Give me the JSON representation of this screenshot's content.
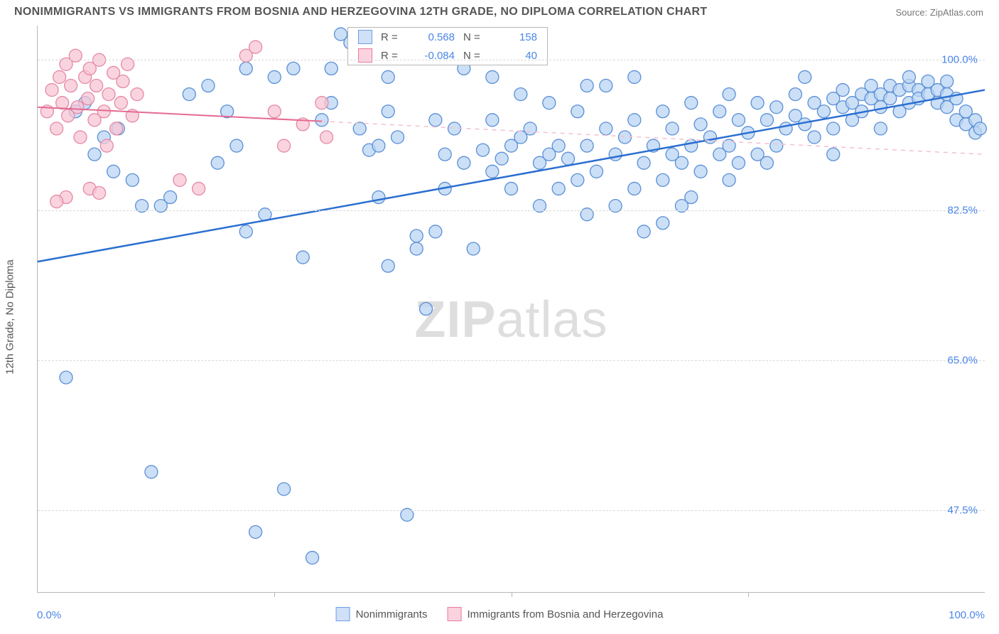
{
  "title": "NONIMMIGRANTS VS IMMIGRANTS FROM BOSNIA AND HERZEGOVINA 12TH GRADE, NO DIPLOMA CORRELATION CHART",
  "source": "Source: ZipAtlas.com",
  "y_axis_title": "12th Grade, No Diploma",
  "watermark_bold": "ZIP",
  "watermark_light": "atlas",
  "axes": {
    "xlim": [
      0,
      100
    ],
    "ylim": [
      38,
      104
    ],
    "x_label_min": "0.0%",
    "x_label_max": "100.0%",
    "x_ticks": [
      0,
      25,
      50,
      75,
      100
    ],
    "y_ticks": [
      {
        "v": 47.5,
        "label": "47.5%"
      },
      {
        "v": 65.0,
        "label": "65.0%"
      },
      {
        "v": 82.5,
        "label": "82.5%"
      },
      {
        "v": 100.0,
        "label": "100.0%"
      }
    ],
    "grid_color": "#d9d9d9",
    "axis_color": "#b7b7b7",
    "tick_label_color": "#4a86e8",
    "tick_fontsize": 15
  },
  "legend_top": [
    {
      "color_fill": "#cfe0f7",
      "color_border": "#6f9fe6",
      "r_label": "R =",
      "r_value": "0.568",
      "n_label": "N =",
      "n_value": "158"
    },
    {
      "color_fill": "#fad3de",
      "color_border": "#ea7aa0",
      "r_label": "R =",
      "r_value": "-0.084",
      "n_label": "N =",
      "n_value": "40"
    }
  ],
  "legend_bottom": [
    {
      "color_fill": "#cfe0f7",
      "color_border": "#6f9fe6",
      "label": "Nonimmigrants"
    },
    {
      "color_fill": "#fad3de",
      "color_border": "#ea7aa0",
      "label": "Immigrants from Bosnia and Herzegovina"
    }
  ],
  "series": {
    "blue": {
      "marker_fill": "#b9d4f3",
      "marker_stroke": "#5a8fd6",
      "marker_fill_opacity": 0.75,
      "marker_radius": 9,
      "trend_color": "#2b6fd1",
      "trend_width": 2.5,
      "trend_dash_color": "#b9d4f3",
      "trend": {
        "x1": 0,
        "y1": 76.5,
        "x2": 100,
        "y2": 96.5
      },
      "points": [
        [
          3,
          63
        ],
        [
          5,
          95
        ],
        [
          7,
          91
        ],
        [
          8,
          87
        ],
        [
          10,
          86
        ],
        [
          11,
          83
        ],
        [
          12,
          52
        ],
        [
          14,
          84
        ],
        [
          16,
          96
        ],
        [
          18,
          97
        ],
        [
          20,
          94
        ],
        [
          21,
          90
        ],
        [
          22,
          80
        ],
        [
          23,
          45
        ],
        [
          25,
          98
        ],
        [
          26,
          50
        ],
        [
          27,
          99
        ],
        [
          28,
          77
        ],
        [
          29,
          42
        ],
        [
          30,
          93
        ],
        [
          31,
          95
        ],
        [
          32,
          103
        ],
        [
          33,
          102
        ],
        [
          34,
          92
        ],
        [
          35,
          89.5
        ],
        [
          36,
          90
        ],
        [
          36,
          84
        ],
        [
          37,
          94
        ],
        [
          37,
          98
        ],
        [
          38,
          91
        ],
        [
          39,
          47
        ],
        [
          40,
          78
        ],
        [
          40,
          79.5
        ],
        [
          41,
          71
        ],
        [
          42,
          93
        ],
        [
          43,
          89
        ],
        [
          43,
          85
        ],
        [
          44,
          92
        ],
        [
          45,
          88
        ],
        [
          45,
          99
        ],
        [
          46,
          78
        ],
        [
          47,
          89.5
        ],
        [
          48,
          93
        ],
        [
          48,
          87
        ],
        [
          49,
          88.5
        ],
        [
          50,
          90
        ],
        [
          50,
          85
        ],
        [
          51,
          91
        ],
        [
          52,
          92
        ],
        [
          53,
          88
        ],
        [
          53,
          83
        ],
        [
          54,
          89
        ],
        [
          55,
          85
        ],
        [
          55,
          90
        ],
        [
          56,
          88.5
        ],
        [
          57,
          86
        ],
        [
          57,
          94
        ],
        [
          58,
          82
        ],
        [
          58,
          90
        ],
        [
          59,
          87
        ],
        [
          60,
          92
        ],
        [
          60,
          97
        ],
        [
          61,
          83
        ],
        [
          61,
          89
        ],
        [
          62,
          91
        ],
        [
          63,
          85
        ],
        [
          63,
          93
        ],
        [
          64,
          88
        ],
        [
          64,
          80
        ],
        [
          65,
          90
        ],
        [
          66,
          86
        ],
        [
          66,
          94
        ],
        [
          67,
          89
        ],
        [
          67,
          92
        ],
        [
          68,
          88
        ],
        [
          68,
          83
        ],
        [
          69,
          90
        ],
        [
          69,
          95
        ],
        [
          70,
          87
        ],
        [
          70,
          92.5
        ],
        [
          71,
          91
        ],
        [
          72,
          89
        ],
        [
          72,
          94
        ],
        [
          73,
          90
        ],
        [
          73,
          86
        ],
        [
          74,
          93
        ],
        [
          74,
          88
        ],
        [
          75,
          91.5
        ],
        [
          76,
          95
        ],
        [
          76,
          89
        ],
        [
          77,
          93
        ],
        [
          78,
          90
        ],
        [
          78,
          94.5
        ],
        [
          79,
          92
        ],
        [
          80,
          93.5
        ],
        [
          80,
          96
        ],
        [
          81,
          92.5
        ],
        [
          82,
          95
        ],
        [
          82,
          91
        ],
        [
          83,
          94
        ],
        [
          84,
          95.5
        ],
        [
          84,
          92
        ],
        [
          85,
          94.5
        ],
        [
          85,
          96.5
        ],
        [
          86,
          95
        ],
        [
          86,
          93
        ],
        [
          87,
          96
        ],
        [
          87,
          94
        ],
        [
          88,
          95.5
        ],
        [
          88,
          97
        ],
        [
          89,
          96
        ],
        [
          89,
          94.5
        ],
        [
          90,
          97
        ],
        [
          90,
          95.5
        ],
        [
          91,
          96.5
        ],
        [
          91,
          94
        ],
        [
          92,
          97
        ],
        [
          92,
          95
        ],
        [
          93,
          96.5
        ],
        [
          93,
          95.5
        ],
        [
          94,
          96
        ],
        [
          94,
          97.5
        ],
        [
          95,
          96.5
        ],
        [
          95,
          95
        ],
        [
          96,
          96
        ],
        [
          96,
          94.5
        ],
        [
          97,
          95.5
        ],
        [
          97,
          93
        ],
        [
          98,
          94
        ],
        [
          98,
          92.5
        ],
        [
          99,
          93
        ],
        [
          99,
          91.5
        ],
        [
          99.5,
          92
        ],
        [
          22,
          99
        ],
        [
          24,
          82
        ],
        [
          19,
          88
        ],
        [
          13,
          83
        ],
        [
          8.5,
          92
        ],
        [
          6,
          89
        ],
        [
          4,
          94
        ],
        [
          31,
          99
        ],
        [
          35,
          102
        ],
        [
          37,
          76
        ],
        [
          42,
          80
        ],
        [
          48,
          98
        ],
        [
          51,
          96
        ],
        [
          54,
          95
        ],
        [
          58,
          97
        ],
        [
          63,
          98
        ],
        [
          66,
          81
        ],
        [
          69,
          84
        ],
        [
          73,
          96
        ],
        [
          77,
          88
        ],
        [
          81,
          98
        ],
        [
          84,
          89
        ],
        [
          89,
          92
        ],
        [
          92,
          98
        ],
        [
          96,
          97.5
        ]
      ]
    },
    "pink": {
      "marker_fill": "#f7c6d4",
      "marker_stroke": "#e688a6",
      "marker_fill_opacity": 0.75,
      "marker_radius": 9,
      "trend_color": "#e56a92",
      "trend_width": 2,
      "trend_dash_color": "#f4c0cf",
      "trend": {
        "x1": 0,
        "y1": 94.5,
        "x2": 100,
        "y2": 89
      },
      "trend_solid_until_x": 30,
      "points": [
        [
          1,
          94
        ],
        [
          1.5,
          96.5
        ],
        [
          2,
          92
        ],
        [
          2.3,
          98
        ],
        [
          2.6,
          95
        ],
        [
          3,
          99.5
        ],
        [
          3.2,
          93.5
        ],
        [
          3.5,
          97
        ],
        [
          4,
          100.5
        ],
        [
          4.2,
          94.5
        ],
        [
          4.5,
          91
        ],
        [
          5,
          98
        ],
        [
          5.3,
          95.5
        ],
        [
          5.5,
          99
        ],
        [
          6,
          93
        ],
        [
          6.2,
          97
        ],
        [
          6.5,
          100
        ],
        [
          7,
          94
        ],
        [
          7.3,
          90
        ],
        [
          7.5,
          96
        ],
        [
          8,
          98.5
        ],
        [
          8.3,
          92
        ],
        [
          5.5,
          85
        ],
        [
          8.8,
          95
        ],
        [
          9,
          97.5
        ],
        [
          3,
          84
        ],
        [
          9.5,
          99.5
        ],
        [
          10,
          93.5
        ],
        [
          10.5,
          96
        ],
        [
          6.5,
          84.5
        ],
        [
          15,
          86
        ],
        [
          17,
          85
        ],
        [
          22,
          100.5
        ],
        [
          23,
          101.5
        ],
        [
          25,
          94
        ],
        [
          26,
          90
        ],
        [
          28,
          92.5
        ],
        [
          30,
          95
        ],
        [
          30.5,
          91
        ],
        [
          2,
          83.5
        ]
      ]
    }
  },
  "colors": {
    "title": "#555555",
    "source": "#777777",
    "background": "#ffffff"
  }
}
